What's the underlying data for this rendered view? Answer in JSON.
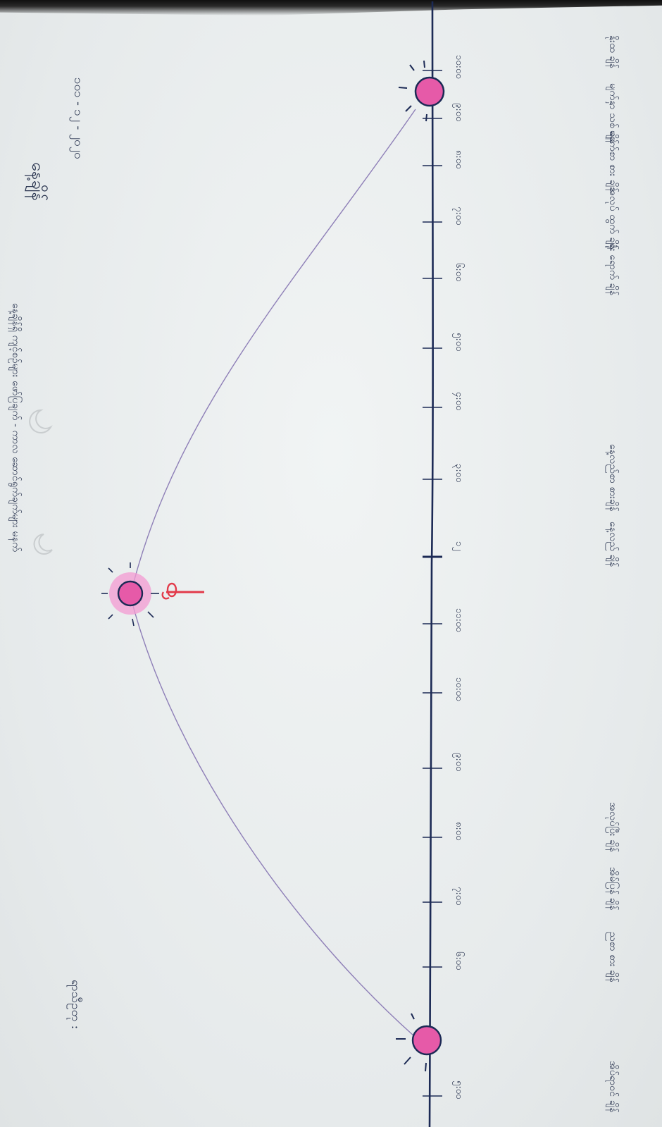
{
  "header": {
    "title": "နေ့ချိန်",
    "date": "၁၀၁ - ၁၂ - ၂၀၂၀"
  },
  "footer": {
    "label": "ရာသီဥတု :"
  },
  "caption": "နေ့ချိန်ရှိ ကျင့်စဉ်များ ဖော်ပြချက် - ကာလ ဆောင်ရွက်ချက်များ မနက်",
  "noon_label": "၁၂",
  "timeline": {
    "ticks": [
      {
        "time": "၁၀:၀၀",
        "event": "နိုးထ ချိန်"
      },
      {
        "time": "၉:၀၀",
        "event": "မျက်နှာ သစ် ချိန်"
      },
      {
        "time": "၈:၀၀",
        "event": "မနက်စာ စား ချိန်"
      },
      {
        "time": "၇:၀၀",
        "event": "အလုပ် ထွက် ချိန်"
      },
      {
        "time": "၆:၀၀",
        "event": "ရုံး ရောက် ချိန်"
      },
      {
        "time": "၅:၀၀",
        "event": ""
      },
      {
        "time": "၄:၀၀",
        "event": ""
      },
      {
        "time": "၃:၀၀",
        "event": "နေ့လည်စာ စားချိန်"
      },
      {
        "time": "၁၂",
        "event": "နေ့လည် ချိန်"
      },
      {
        "time": "၁၁:၀၀",
        "event": ""
      },
      {
        "time": "၁၀:၀၀",
        "event": ""
      },
      {
        "time": "၉:၀၀",
        "event": ""
      },
      {
        "time": "၈:၀၀",
        "event": "အလုပ်ပြီး ချိန်"
      },
      {
        "time": "၇:၀၀",
        "event": "အိမ်ပြန် ချိန်"
      },
      {
        "time": "၆:၀၀",
        "event": "ညစာ စား ချိန်"
      },
      {
        "time": "၅:၀၀",
        "event": "အိပ်ရာဝင် ချိန်"
      }
    ]
  },
  "colors": {
    "ink": "#1c2a55",
    "sun_fill": "#e65aa8",
    "sun_glow": "#f39ad2",
    "arc": "#8e7fb7",
    "marker": "#e23a4a"
  },
  "icons": [
    "sunrise-icon",
    "noon-sun-icon",
    "sunset-icon",
    "moon-icon",
    "noon-marker-icon"
  ]
}
